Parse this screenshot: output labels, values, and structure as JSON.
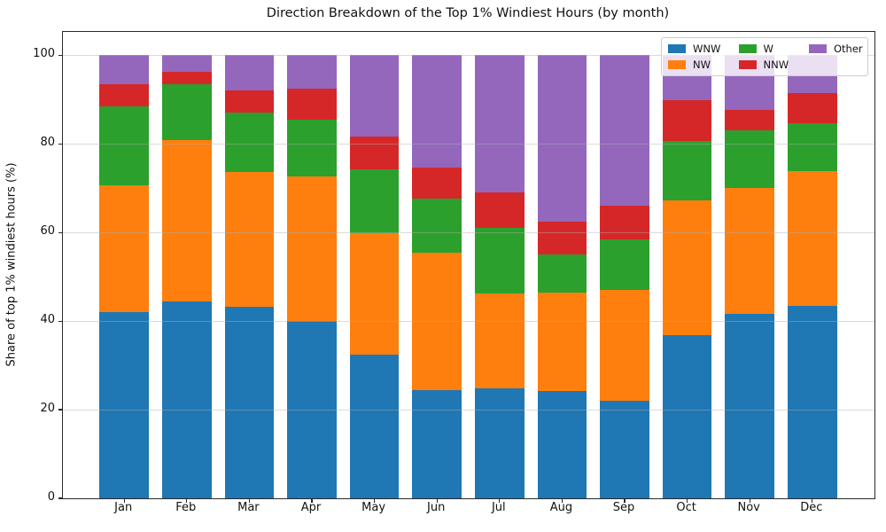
{
  "figure": {
    "title": "Direction Breakdown of the Top 1% Windiest Hours (by month)"
  },
  "chart_data": {
    "type": "bar",
    "stacked": true,
    "title": "Direction Breakdown of the Top 1% Windiest Hours (by month)",
    "xlabel": "",
    "ylabel": "Share of top 1% windiest hours (%)",
    "categories": [
      "Jan",
      "Feb",
      "Mar",
      "Apr",
      "May",
      "Jun",
      "Jul",
      "Aug",
      "Sep",
      "Oct",
      "Nov",
      "Dec"
    ],
    "series": [
      {
        "name": "WNW",
        "color": "#1f77b4",
        "values": [
          42.0,
          44.5,
          43.2,
          40.0,
          32.4,
          24.4,
          24.9,
          24.2,
          22.1,
          36.9,
          41.7,
          43.4
        ]
      },
      {
        "name": "NW",
        "color": "#ff7f0e",
        "values": [
          28.7,
          36.4,
          30.4,
          32.6,
          27.4,
          31.1,
          21.3,
          22.2,
          24.9,
          30.4,
          28.3,
          30.4
        ]
      },
      {
        "name": "W",
        "color": "#2ca02c",
        "values": [
          17.7,
          12.6,
          13.4,
          12.9,
          14.4,
          12.1,
          14.8,
          8.6,
          11.4,
          13.4,
          13.0,
          10.9
        ]
      },
      {
        "name": "NNW",
        "color": "#d62728",
        "values": [
          5.0,
          2.8,
          5.1,
          7.0,
          7.5,
          7.0,
          8.0,
          7.5,
          7.6,
          9.2,
          4.7,
          6.8
        ]
      },
      {
        "name": "Other",
        "color": "#9467bd",
        "values": [
          6.6,
          3.7,
          7.9,
          7.5,
          18.3,
          25.4,
          31.0,
          37.5,
          34.0,
          10.1,
          12.3,
          8.5
        ]
      }
    ],
    "yticks": [
      0,
      20,
      40,
      60,
      80,
      100
    ],
    "ylim": [
      0,
      105.3
    ],
    "grid": true,
    "legend_position": "upper right",
    "legend_columns": [
      [
        "WNW",
        "NW"
      ],
      [
        "W",
        "NNW"
      ],
      [
        "Other"
      ]
    ]
  }
}
